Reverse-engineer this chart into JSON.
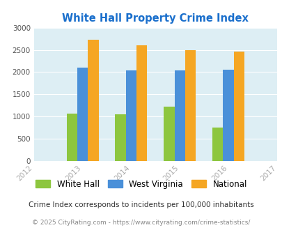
{
  "title": "White Hall Property Crime Index",
  "title_color": "#1a6fcc",
  "years": [
    "2013",
    "2014",
    "2015",
    "2016"
  ],
  "white_hall": [
    1060,
    1050,
    1220,
    760
  ],
  "west_virginia": [
    2100,
    2030,
    2030,
    2050
  ],
  "national": [
    2730,
    2600,
    2500,
    2460
  ],
  "bar_colors": {
    "white_hall": "#8dc63f",
    "west_virginia": "#4a90d9",
    "national": "#f5a623"
  },
  "xlim_ticks": [
    "2012",
    "2013",
    "2014",
    "2015",
    "2016",
    "2017"
  ],
  "ylim": [
    0,
    3000
  ],
  "yticks": [
    0,
    500,
    1000,
    1500,
    2000,
    2500,
    3000
  ],
  "background_color": "#ddeef4",
  "legend_labels": [
    "White Hall",
    "West Virginia",
    "National"
  ],
  "footnote1": "Crime Index corresponds to incidents per 100,000 inhabitants",
  "footnote2": "© 2025 CityRating.com - https://www.cityrating.com/crime-statistics/",
  "footnote_color1": "#333333",
  "footnote_color2": "#888888",
  "tick_color": "#aaaaaa"
}
